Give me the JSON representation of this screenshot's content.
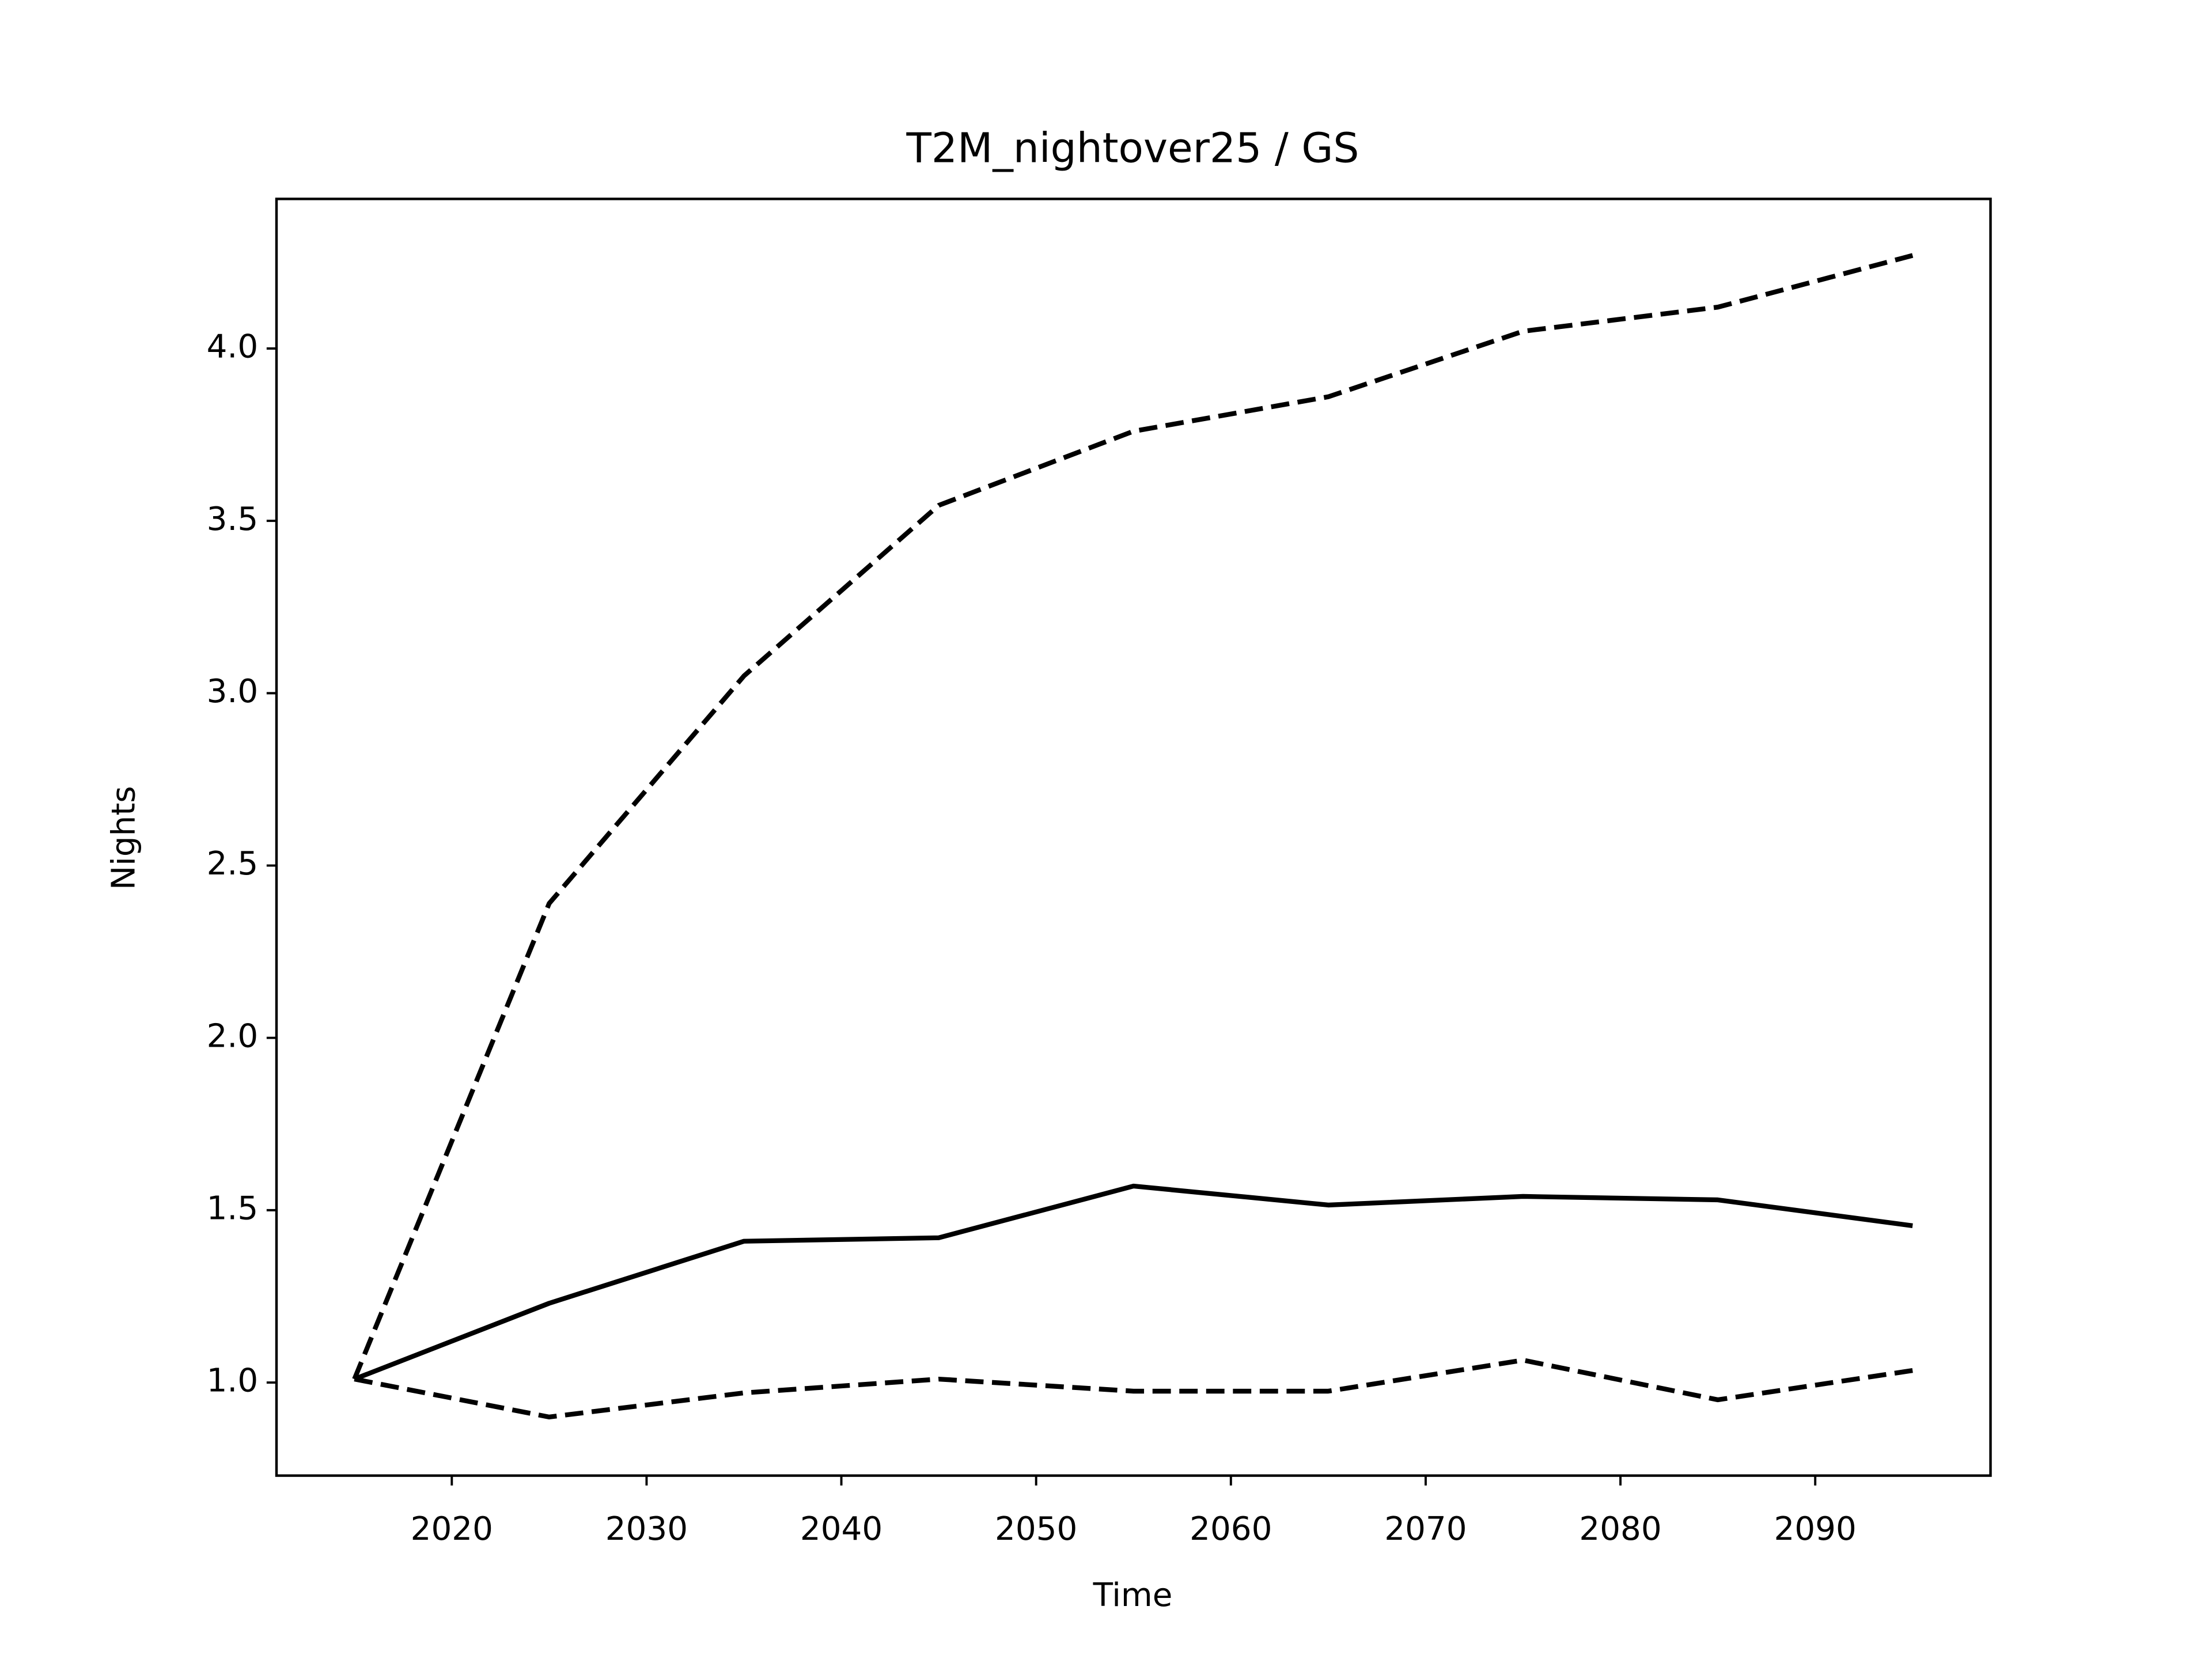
{
  "chart_data": {
    "type": "line",
    "title": "T2M_nightover25 / GS",
    "xlabel": "Time",
    "ylabel": "Nights",
    "x": [
      2015,
      2025,
      2035,
      2045,
      2055,
      2065,
      2075,
      2085,
      2095
    ],
    "series": [
      {
        "color": "#000000",
        "dashed": false,
        "values": [
          1.01,
          1.23,
          1.41,
          1.42,
          1.57,
          1.515,
          1.54,
          1.53,
          1.455
        ]
      },
      {
        "color": "#000000",
        "dashed": true,
        "values": [
          1.01,
          2.39,
          3.05,
          3.545,
          3.76,
          3.86,
          4.05,
          4.12,
          4.27
        ]
      },
      {
        "color": "#000000",
        "dashed": true,
        "values": [
          1.01,
          0.9,
          0.97,
          1.01,
          0.975,
          0.975,
          1.065,
          0.95,
          1.035
        ]
      }
    ],
    "xlim": [
      2011,
      2099
    ],
    "ylim": [
      0.73,
      4.434
    ],
    "xticks": [
      2020,
      2030,
      2040,
      2050,
      2060,
      2070,
      2080,
      2090
    ],
    "yticks": [
      {
        "value": 1,
        "label": "1.0"
      },
      {
        "value": 1.5,
        "label": "1.5"
      },
      {
        "value": 2,
        "label": "2.0"
      },
      {
        "value": 2.5,
        "label": "2.5"
      },
      {
        "value": 3,
        "label": "3.0"
      },
      {
        "value": 3.5,
        "label": "3.5"
      },
      {
        "value": 4,
        "label": "4.0"
      }
    ],
    "grid": false
  }
}
